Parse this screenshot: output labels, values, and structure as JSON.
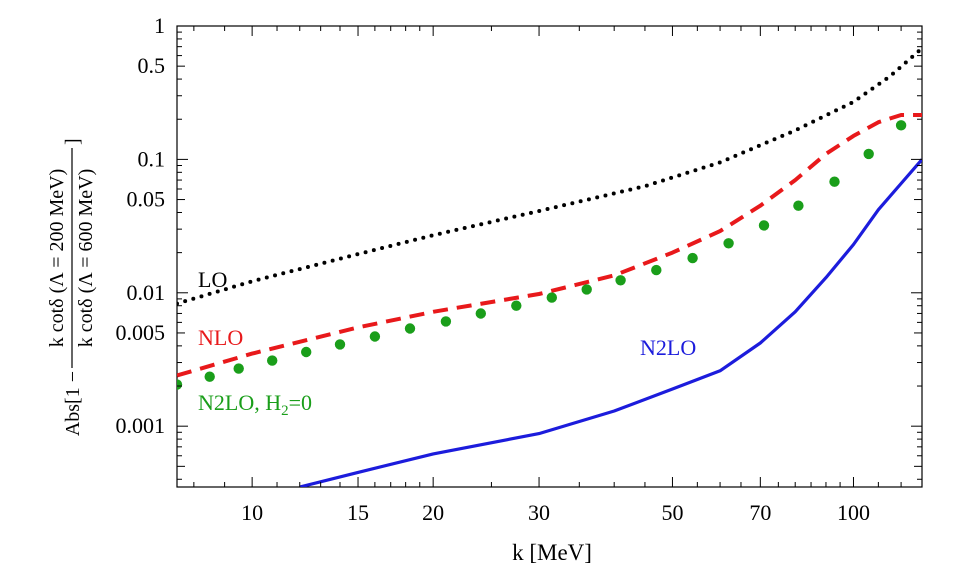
{
  "chart_data": {
    "type": "line",
    "title": "",
    "xlabel": "k [MeV]",
    "ylabel": {
      "prefix": "Abs[1 −",
      "numerator": "k cotδ (Λ = 200 MeV)",
      "denominator": "k cotδ (Λ = 600 MeV)",
      "suffix": "]"
    },
    "xscale": "log",
    "yscale": "log",
    "xlim": [
      7.5,
      130
    ],
    "ylim": [
      0.00035,
      1
    ],
    "xticks": [
      {
        "value": 10,
        "label": "10"
      },
      {
        "value": 15,
        "label": "15"
      },
      {
        "value": 20,
        "label": "20"
      },
      {
        "value": 30,
        "label": "30"
      },
      {
        "value": 50,
        "label": "50"
      },
      {
        "value": 70,
        "label": "70"
      },
      {
        "value": 100,
        "label": "100"
      }
    ],
    "yticks": [
      {
        "value": 1,
        "label": "1"
      },
      {
        "value": 0.5,
        "label": "0.5"
      },
      {
        "value": 0.1,
        "label": "0.1"
      },
      {
        "value": 0.05,
        "label": "0.05"
      },
      {
        "value": 0.01,
        "label": "0.01"
      },
      {
        "value": 0.005,
        "label": "0.005"
      },
      {
        "value": 0.001,
        "label": "0.001"
      }
    ],
    "series": [
      {
        "name": "LO",
        "label": "LO",
        "style": "dotted",
        "color": "#000000",
        "x": [
          7.5,
          10,
          15,
          20,
          30,
          45,
          60,
          80,
          100,
          115,
          130
        ],
        "y": [
          0.0083,
          0.0122,
          0.0195,
          0.027,
          0.041,
          0.063,
          0.095,
          0.165,
          0.27,
          0.42,
          0.68
        ]
      },
      {
        "name": "NLO",
        "label": "NLO",
        "style": "dashed",
        "color": "#e8191b",
        "x": [
          7.5,
          10,
          15,
          20,
          30,
          40,
          50,
          60,
          70,
          80,
          90,
          100,
          110,
          120,
          130
        ],
        "y": [
          0.0024,
          0.0035,
          0.0055,
          0.0072,
          0.0098,
          0.0135,
          0.02,
          0.029,
          0.045,
          0.07,
          0.11,
          0.15,
          0.19,
          0.215,
          0.215
        ]
      },
      {
        "name": "N2LO, H2=0",
        "label": "N2LO, H",
        "label_sub": "2",
        "label_suffix": "=0",
        "style": "dots",
        "color": "#1a9e1a",
        "x": [
          7.5,
          8.5,
          9.5,
          10.8,
          12.3,
          14,
          16,
          18.3,
          21,
          24,
          27.5,
          31.5,
          36,
          41,
          47,
          54,
          62,
          71,
          81,
          93,
          106,
          120
        ],
        "y": [
          0.00205,
          0.00235,
          0.0027,
          0.0031,
          0.0036,
          0.0041,
          0.0047,
          0.0054,
          0.0061,
          0.007,
          0.008,
          0.0092,
          0.0106,
          0.0124,
          0.0148,
          0.0182,
          0.0235,
          0.032,
          0.045,
          0.068,
          0.11,
          0.18
        ]
      },
      {
        "name": "N2LO",
        "label": "N2LO",
        "style": "solid",
        "color": "#1c1cdc",
        "x": [
          12,
          15,
          20,
          30,
          40,
          50,
          60,
          70,
          80,
          90,
          100,
          110,
          120,
          130
        ],
        "y": [
          0.00035,
          0.00045,
          0.00062,
          0.00088,
          0.0013,
          0.0019,
          0.0026,
          0.0042,
          0.0072,
          0.013,
          0.023,
          0.042,
          0.066,
          0.1
        ]
      }
    ]
  }
}
